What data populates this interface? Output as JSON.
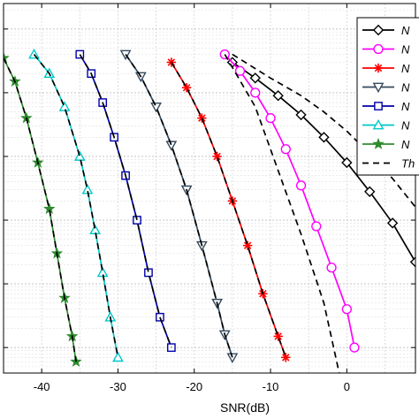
{
  "chart_data": {
    "type": "line",
    "xlabel": "SNR(dB)",
    "ylabel": "",
    "xlim": [
      -45,
      9
    ],
    "ylim_log10": [
      -5.4,
      0.4
    ],
    "y_scale": "log",
    "grid": true,
    "legend_placement": "top-right",
    "x_tick_labels": [
      {
        "v": -40,
        "t": "-40"
      },
      {
        "v": -30,
        "t": "-30"
      },
      {
        "v": -20,
        "t": "-20"
      },
      {
        "v": -10,
        "t": "-10"
      },
      {
        "v": 0,
        "t": "0"
      }
    ],
    "y_major_decades": [
      -5,
      -4,
      -3,
      -2,
      -1,
      0
    ],
    "series": [
      {
        "name": "N",
        "color": "#000000",
        "marker": "diamond",
        "x": [
          -15,
          -12,
          -9,
          -6,
          -3,
          0,
          3,
          6,
          9
        ],
        "y": [
          0.3,
          0.17,
          0.09,
          0.045,
          0.02,
          0.008,
          0.0028,
          0.0009,
          0.00022
        ]
      },
      {
        "name": "N",
        "color": "#ff00ff",
        "marker": "circle",
        "x": [
          -16,
          -14,
          -12,
          -10,
          -8,
          -6,
          -4,
          -2,
          0,
          1
        ],
        "y": [
          0.4,
          0.22,
          0.1,
          0.04,
          0.013,
          0.0035,
          0.0008,
          0.00018,
          4e-05,
          1e-05
        ]
      },
      {
        "name": "N",
        "color": "#ff0000",
        "marker": "asterisk",
        "x": [
          -23,
          -21,
          -19,
          -17,
          -15,
          -13,
          -11,
          -9,
          -8
        ],
        "y": [
          0.3,
          0.12,
          0.04,
          0.01,
          0.002,
          0.0004,
          7e-05,
          1.5e-05,
          7e-06
        ]
      },
      {
        "name": "N",
        "color": "#34495e",
        "marker": "triangle-down",
        "x": [
          -29,
          -27,
          -25,
          -23,
          -21,
          -19,
          -17,
          -16,
          -15
        ],
        "y": [
          0.4,
          0.18,
          0.06,
          0.015,
          0.003,
          0.0004,
          5e-05,
          1.6e-05,
          7e-06
        ]
      },
      {
        "name": "N",
        "color": "#0000aa",
        "marker": "square",
        "x": [
          -35,
          -33.5,
          -32,
          -30.5,
          -29,
          -27.5,
          -26,
          -24.5,
          -23
        ],
        "y": [
          0.4,
          0.2,
          0.07,
          0.02,
          0.005,
          0.001,
          0.00015,
          3e-05,
          1e-05
        ]
      },
      {
        "name": "N",
        "color": "#00c8c8",
        "marker": "triangle-up",
        "x": [
          -41,
          -39,
          -37,
          -35,
          -34,
          -33,
          -32,
          -31,
          -30
        ],
        "y": [
          0.4,
          0.2,
          0.06,
          0.01,
          0.003,
          0.0007,
          0.00015,
          3e-05,
          7e-06
        ]
      },
      {
        "name": "N",
        "color": "#2e8b2e",
        "marker": "pentagram",
        "x": [
          -45,
          -43.5,
          -42,
          -40.5,
          -39,
          -38,
          -37,
          -36,
          -35.5
        ],
        "y": [
          0.35,
          0.15,
          0.04,
          0.008,
          0.0015,
          0.0003,
          6e-05,
          1.5e-05,
          6e-06
        ]
      },
      {
        "name": "Th",
        "color": "#000000",
        "dashed": true,
        "marker": "none",
        "groups": [
          {
            "x": [
              -15,
              -10,
              -6,
              -3,
              0,
              3,
              6,
              9
            ],
            "y": [
              0.4,
              0.17,
              0.09,
              0.05,
              0.025,
              0.011,
              0.0045,
              0.0016
            ]
          },
          {
            "x": [
              -16,
              -12,
              -9,
              -6,
              -3,
              -1
            ],
            "y": [
              0.4,
              0.06,
              0.006,
              0.0006,
              5e-05,
              4e-06
            ]
          },
          {
            "x": [
              -23,
              -21,
              -19,
              -17,
              -15,
              -13,
              -11,
              -9,
              -8
            ],
            "y": [
              0.3,
              0.12,
              0.04,
              0.01,
              0.002,
              0.0004,
              7e-05,
              1.5e-05,
              7e-06
            ]
          },
          {
            "x": [
              -29,
              -27,
              -25,
              -23,
              -21,
              -19,
              -17,
              -16,
              -15
            ],
            "y": [
              0.4,
              0.18,
              0.06,
              0.015,
              0.003,
              0.0004,
              5e-05,
              1.6e-05,
              7e-06
            ]
          },
          {
            "x": [
              -35,
              -33.5,
              -32,
              -30.5,
              -29,
              -27.5,
              -26,
              -24.5,
              -23
            ],
            "y": [
              0.4,
              0.2,
              0.07,
              0.02,
              0.005,
              0.001,
              0.00015,
              3e-05,
              1e-05
            ]
          },
          {
            "x": [
              -41,
              -39,
              -37,
              -35,
              -34,
              -33,
              -32,
              -31,
              -30
            ],
            "y": [
              0.4,
              0.2,
              0.06,
              0.01,
              0.003,
              0.0007,
              0.00015,
              3e-05,
              7e-06
            ]
          },
          {
            "x": [
              -45,
              -43.5,
              -42,
              -40.5,
              -39,
              -38,
              -37,
              -36,
              -35.5
            ],
            "y": [
              0.35,
              0.15,
              0.04,
              0.008,
              0.0015,
              0.0003,
              6e-05,
              1.5e-05,
              6e-06
            ]
          }
        ]
      }
    ]
  }
}
